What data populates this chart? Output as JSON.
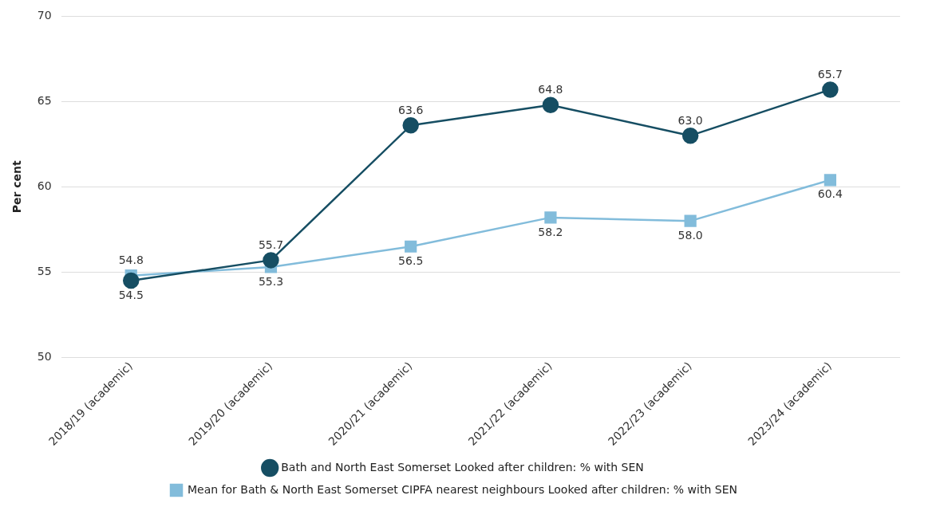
{
  "chart_data": {
    "type": "line",
    "ylabel": "Per cent",
    "categories": [
      "2018/19 (academic)",
      "2019/20 (academic)",
      "2020/21 (academic)",
      "2021/22 (academic)",
      "2022/23 (academic)",
      "2023/24 (academic)"
    ],
    "series": [
      {
        "name": "Bath and North East Somerset Looked after children: % with SEN",
        "color": "#164e63",
        "marker": "circle",
        "values": [
          54.5,
          55.7,
          63.6,
          64.8,
          63.0,
          65.7
        ],
        "value_labels": [
          "54.5",
          "55.7",
          "63.6",
          "64.8",
          "63.0",
          "65.7"
        ]
      },
      {
        "name": "Mean for Bath & North East Somerset CIPFA nearest neighbours Looked after children: % with SEN",
        "color": "#82bcdb",
        "marker": "square",
        "values": [
          54.8,
          55.3,
          56.5,
          58.2,
          58.0,
          60.4
        ],
        "value_labels": [
          "54.8",
          "55.3",
          "56.5",
          "58.2",
          "58.0",
          "60.4"
        ]
      }
    ],
    "ylim": [
      50,
      70
    ],
    "yticks": [
      50,
      55,
      60,
      65,
      70
    ],
    "grid": "y",
    "legend": "bottom"
  }
}
